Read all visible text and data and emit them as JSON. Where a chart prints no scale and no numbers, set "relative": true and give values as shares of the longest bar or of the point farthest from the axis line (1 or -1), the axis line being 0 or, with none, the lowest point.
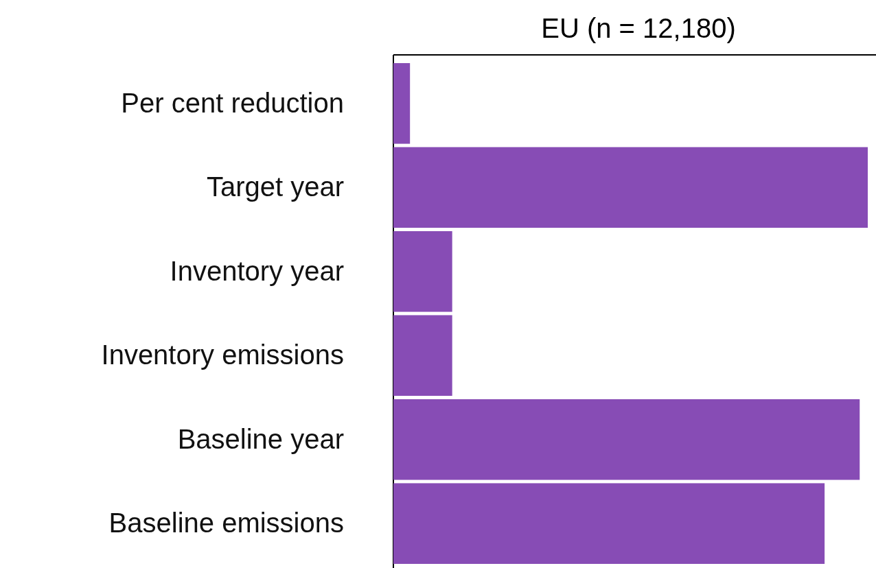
{
  "chart_data": {
    "type": "bar",
    "orientation": "horizontal",
    "relative": true,
    "title": "EU (n = 12,180)",
    "categories": [
      "Per cent reduction",
      "Target year",
      "Inventory year",
      "Inventory emissions",
      "Baseline year",
      "Baseline emissions"
    ],
    "values": [
      0.035,
      1,
      0.124,
      0.124,
      0.983,
      0.909
    ],
    "color": "#874cb5"
  }
}
